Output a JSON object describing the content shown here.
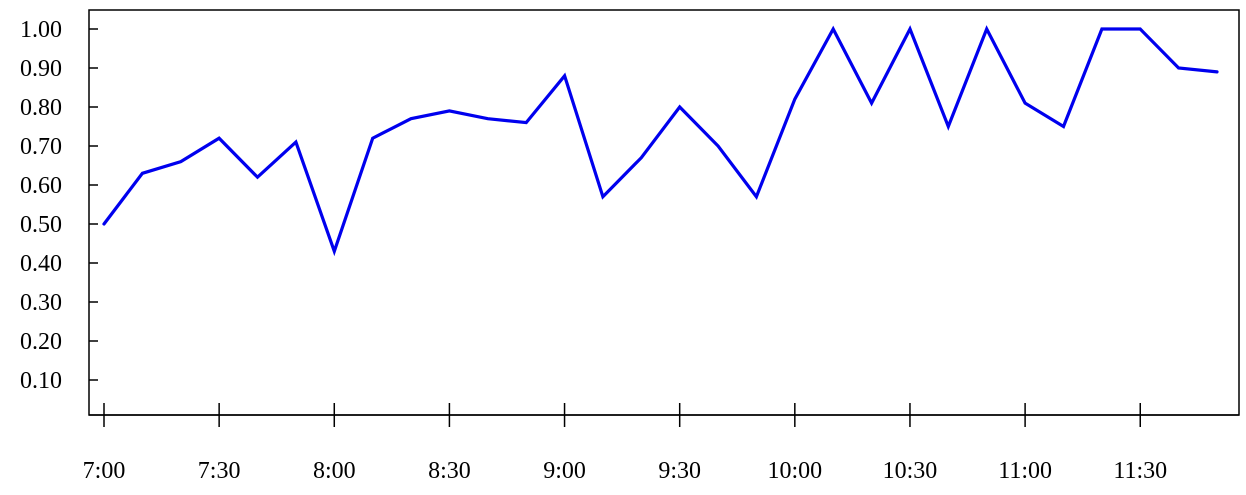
{
  "chart_data": {
    "type": "line",
    "title": "",
    "xlabel": "",
    "ylabel": "",
    "x_tick_labels": [
      "7:00",
      "7:30",
      "8:00",
      "8:30",
      "9:00",
      "9:30",
      "10:00",
      "10:30",
      "11:00",
      "11:30"
    ],
    "y_tick_labels": [
      "0.10",
      "0.20",
      "0.30",
      "0.40",
      "0.50",
      "0.60",
      "0.70",
      "0.80",
      "0.90",
      "1.00"
    ],
    "y_ticks": [
      0.1,
      0.2,
      0.3,
      0.4,
      0.5,
      0.6,
      0.7,
      0.8,
      0.9,
      1.0
    ],
    "ylim": [
      0.05,
      1.05
    ],
    "xlim": [
      "7:00",
      "11:50"
    ],
    "grid": false,
    "legend": "none",
    "series": [
      {
        "color": "#0000ee",
        "x": [
          "7:00",
          "7:10",
          "7:20",
          "7:30",
          "7:40",
          "7:50",
          "8:00",
          "8:10",
          "8:20",
          "8:30",
          "8:40",
          "8:50",
          "9:00",
          "9:10",
          "9:20",
          "9:30",
          "9:40",
          "9:50",
          "10:00",
          "10:10",
          "10:20",
          "10:30",
          "10:40",
          "10:50",
          "11:00",
          "11:10",
          "11:20",
          "11:30",
          "11:40",
          "11:50"
        ],
        "values": [
          0.5,
          0.63,
          0.66,
          0.72,
          0.62,
          0.71,
          0.43,
          0.72,
          0.77,
          0.79,
          0.77,
          0.76,
          0.88,
          0.57,
          0.67,
          0.8,
          0.7,
          0.57,
          0.82,
          1.0,
          0.81,
          1.0,
          0.75,
          1.0,
          0.81,
          0.75,
          1.0,
          1.0,
          0.9,
          0.89
        ]
      }
    ]
  }
}
